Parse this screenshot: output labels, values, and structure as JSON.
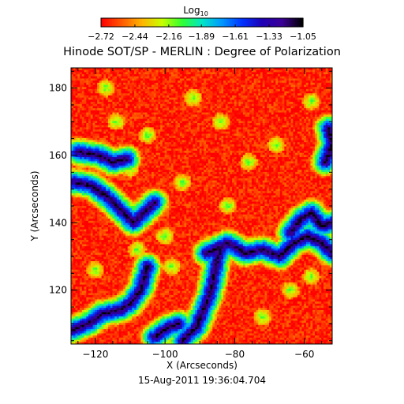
{
  "chart_data": {
    "type": "heatmap",
    "title": "Hinode SOT/SP - MERLIN : Degree of Polarization",
    "colorbar": {
      "label_base": "Log",
      "label_sub": "10",
      "ticks": [
        "-2.72",
        "-2.44",
        "-2.16",
        "-1.89",
        "-1.61",
        "-1.33",
        "-1.05"
      ],
      "range": [
        -2.72,
        -1.05
      ],
      "colors": [
        "#ff0000",
        "#ff5a00",
        "#ffb400",
        "#c8ff00",
        "#32ff32",
        "#00e6c8",
        "#0096ff",
        "#0032ff",
        "#1e00b4",
        "#3c0096",
        "#000000"
      ]
    },
    "xlabel": "X (Arcseconds)",
    "ylabel": "Y (Arcseconds)",
    "xlim": [
      -127,
      -52
    ],
    "ylim": [
      104,
      186
    ],
    "xticks": [
      -120,
      -100,
      -80,
      -60
    ],
    "yticks": [
      120,
      140,
      160,
      180
    ],
    "background_value": -2.66,
    "strong_polarization_lanes": [
      [
        [
          -127,
          108
        ],
        [
          -122,
          110
        ],
        [
          -118,
          113
        ],
        [
          -113,
          114
        ],
        [
          -110,
          116
        ],
        [
          -107,
          120
        ],
        [
          -105,
          127
        ]
      ],
      [
        [
          -126,
          152
        ],
        [
          -121,
          151
        ],
        [
          -117,
          148
        ],
        [
          -113,
          144
        ],
        [
          -109,
          140
        ],
        [
          -106,
          143
        ],
        [
          -103,
          146
        ]
      ],
      [
        [
          -125,
          161
        ],
        [
          -119,
          160
        ],
        [
          -115,
          158
        ],
        [
          -111,
          159
        ]
      ],
      [
        [
          -95,
          105
        ],
        [
          -91,
          109
        ],
        [
          -89,
          114
        ],
        [
          -87,
          119
        ],
        [
          -86,
          124
        ],
        [
          -85,
          129
        ],
        [
          -84,
          133
        ]
      ],
      [
        [
          -88,
          131
        ],
        [
          -82,
          134
        ],
        [
          -77,
          131
        ],
        [
          -72,
          132
        ],
        [
          -67,
          130
        ],
        [
          -63,
          134
        ],
        [
          -59,
          136
        ],
        [
          -55,
          134
        ],
        [
          -52,
          131
        ]
      ],
      [
        [
          -64,
          137
        ],
        [
          -61,
          141
        ],
        [
          -58,
          143
        ],
        [
          -55,
          139
        ],
        [
          -52,
          140
        ]
      ],
      [
        [
          -53,
          168
        ],
        [
          -52,
          163
        ],
        [
          -54,
          158
        ]
      ],
      [
        [
          -103,
          106
        ],
        [
          -99,
          109
        ],
        [
          -96,
          110
        ]
      ]
    ],
    "moderate_patches": [
      [
        -114,
        170
      ],
      [
        -110,
        156
      ],
      [
        -105,
        166
      ],
      [
        -95,
        152
      ],
      [
        -82,
        145
      ],
      [
        -76,
        158
      ],
      [
        -68,
        163
      ],
      [
        -72,
        112
      ],
      [
        -64,
        120
      ],
      [
        -58,
        124
      ],
      [
        -108,
        132
      ],
      [
        -100,
        136
      ],
      [
        -120,
        126
      ],
      [
        -92,
        177
      ],
      [
        -84,
        170
      ],
      [
        -58,
        176
      ],
      [
        -117,
        180
      ],
      [
        -98,
        127
      ]
    ]
  },
  "footer": {
    "timestamp": "15-Aug-2011 19:36:04.704"
  }
}
